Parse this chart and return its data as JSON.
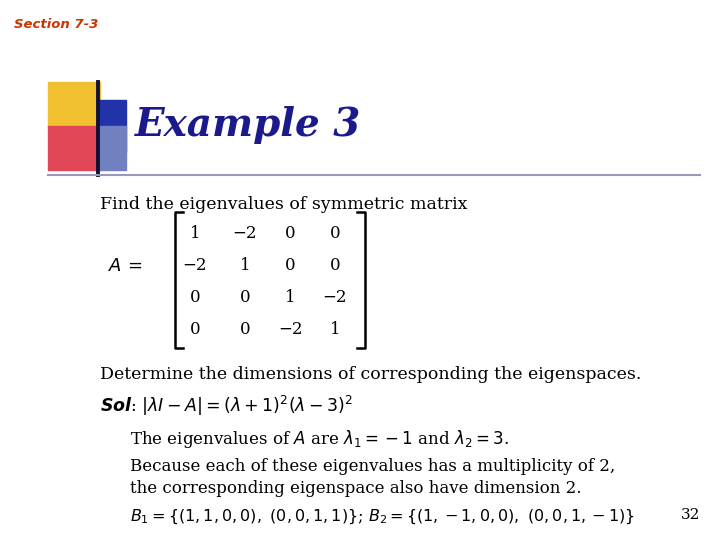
{
  "section_label": "Section 7-3",
  "title": "Example 3",
  "background_color": "#ffffff",
  "section_color": "#cc3300",
  "title_color": "#1a1a8c",
  "body_color": "#000000",
  "slide_number": "32",
  "figsize": [
    7.2,
    5.4
  ],
  "dpi": 100
}
